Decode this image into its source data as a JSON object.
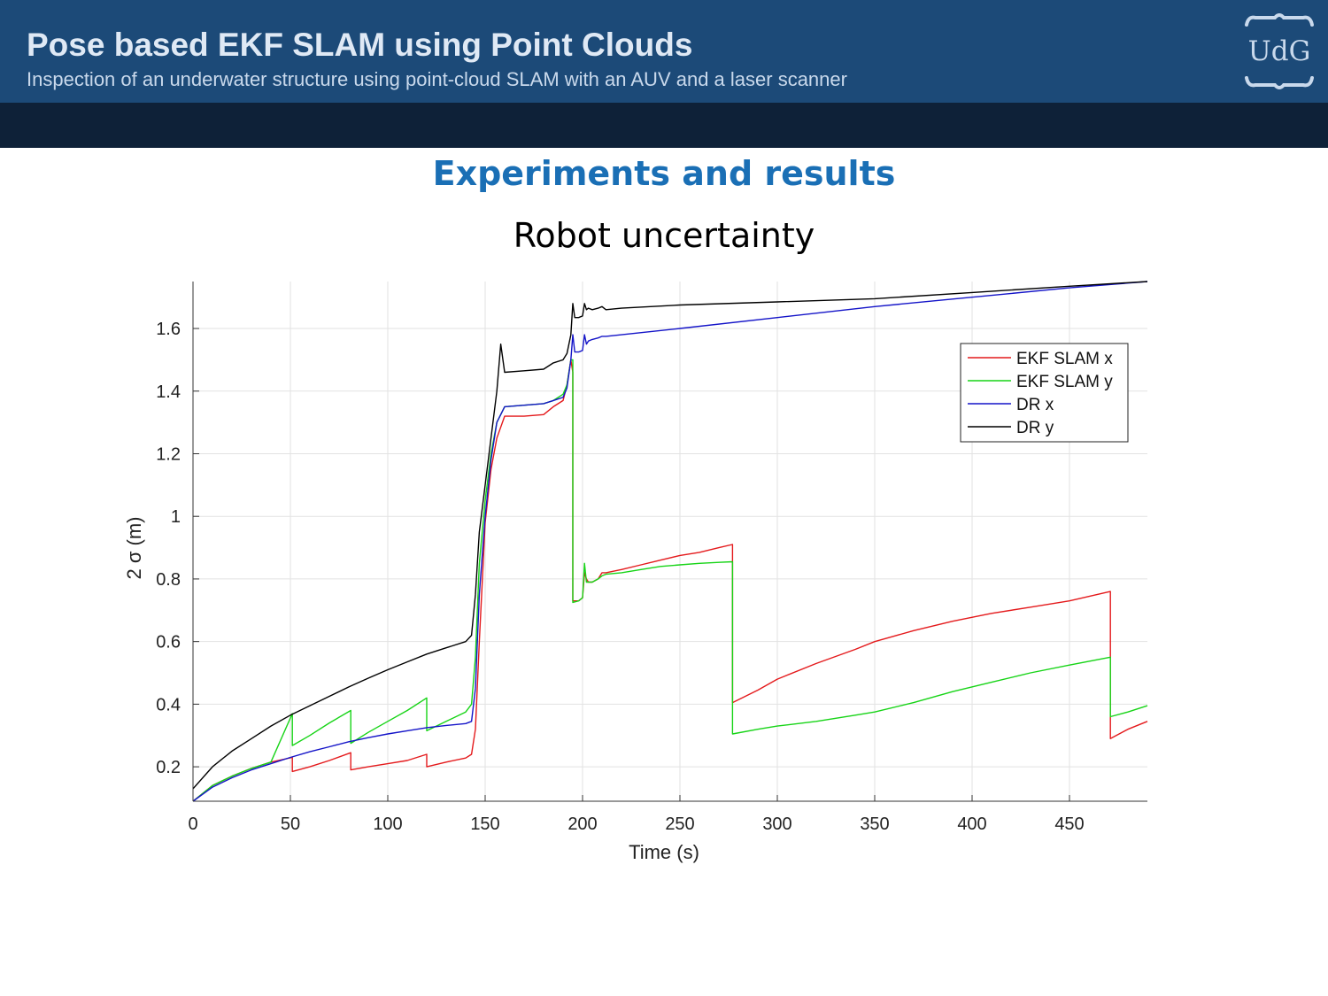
{
  "header": {
    "title": "Pose based EKF SLAM using Point Clouds",
    "subtitle": "Inspection of an underwater structure using point-cloud SLAM with an AUV and a laser scanner",
    "logo_text": "UdG",
    "colors": {
      "bar": "#1c4a78",
      "band": "#0e2138",
      "logo": "#c9d9ec"
    }
  },
  "section_title": "Experiments and results",
  "chart_data": {
    "type": "line",
    "title": "Robot uncertainty",
    "xlabel": "Time (s)",
    "ylabel": "2 σ (m)",
    "xlim": [
      0,
      490
    ],
    "ylim": [
      0.09,
      1.75
    ],
    "xticks": [
      0,
      50,
      100,
      150,
      200,
      250,
      300,
      350,
      400,
      450
    ],
    "yticks": [
      0.2,
      0.4,
      0.6,
      0.8,
      1,
      1.2,
      1.4,
      1.6
    ],
    "ytick_labels": [
      "0.2",
      "0.4",
      "0.6",
      "0.8",
      "1",
      "1.2",
      "1.4",
      "1.6"
    ],
    "grid": true,
    "legend_position": "top-right",
    "series": [
      {
        "name": "EKF SLAM x",
        "color": "#e41a1c",
        "x": [
          0,
          10,
          20,
          30,
          40,
          51,
          51,
          60,
          70,
          81,
          81,
          90,
          100,
          110,
          120,
          120,
          130,
          140,
          143,
          145,
          147,
          150,
          153,
          156,
          160,
          170,
          180,
          185,
          190,
          192,
          194,
          195,
          195,
          198,
          200,
          201,
          202,
          203,
          205,
          208,
          210,
          212,
          220,
          230,
          240,
          250,
          260,
          270,
          277,
          277,
          290,
          300,
          320,
          340,
          350,
          370,
          390,
          410,
          430,
          450,
          471,
          471,
          480,
          490
        ],
        "y": [
          0.09,
          0.14,
          0.17,
          0.195,
          0.215,
          0.23,
          0.185,
          0.2,
          0.22,
          0.245,
          0.19,
          0.2,
          0.21,
          0.22,
          0.24,
          0.2,
          0.215,
          0.228,
          0.24,
          0.32,
          0.6,
          0.98,
          1.15,
          1.25,
          1.32,
          1.32,
          1.325,
          1.35,
          1.37,
          1.42,
          1.5,
          1.46,
          0.73,
          0.73,
          0.74,
          0.82,
          0.8,
          0.79,
          0.79,
          0.8,
          0.82,
          0.82,
          0.83,
          0.845,
          0.86,
          0.875,
          0.885,
          0.9,
          0.91,
          0.405,
          0.445,
          0.48,
          0.53,
          0.575,
          0.6,
          0.635,
          0.665,
          0.69,
          0.71,
          0.73,
          0.76,
          0.29,
          0.32,
          0.345
        ]
      },
      {
        "name": "EKF SLAM y",
        "color": "#17d417",
        "x": [
          0,
          10,
          20,
          30,
          40,
          51,
          51,
          60,
          70,
          81,
          81,
          90,
          100,
          110,
          120,
          120,
          130,
          140,
          143,
          145,
          147,
          150,
          153,
          156,
          160,
          170,
          180,
          185,
          190,
          192,
          194,
          195,
          195,
          198,
          200,
          201,
          202,
          203,
          205,
          208,
          210,
          212,
          220,
          230,
          240,
          250,
          260,
          270,
          277,
          277,
          290,
          300,
          320,
          340,
          350,
          370,
          390,
          410,
          430,
          450,
          471,
          471,
          480,
          490
        ],
        "y": [
          0.09,
          0.14,
          0.17,
          0.195,
          0.215,
          0.37,
          0.268,
          0.3,
          0.34,
          0.38,
          0.275,
          0.31,
          0.345,
          0.38,
          0.42,
          0.315,
          0.345,
          0.375,
          0.4,
          0.55,
          0.85,
          1.05,
          1.2,
          1.3,
          1.35,
          1.355,
          1.36,
          1.37,
          1.39,
          1.42,
          1.5,
          1.5,
          0.725,
          0.73,
          0.74,
          0.85,
          0.79,
          0.79,
          0.79,
          0.8,
          0.81,
          0.815,
          0.82,
          0.83,
          0.84,
          0.845,
          0.85,
          0.853,
          0.855,
          0.305,
          0.32,
          0.33,
          0.345,
          0.365,
          0.375,
          0.405,
          0.44,
          0.47,
          0.5,
          0.525,
          0.55,
          0.36,
          0.375,
          0.395
        ]
      },
      {
        "name": "DR x",
        "color": "#1414c8",
        "x": [
          0,
          10,
          20,
          30,
          40,
          50,
          60,
          70,
          80,
          90,
          100,
          110,
          120,
          130,
          140,
          143,
          145,
          147,
          150,
          153,
          156,
          160,
          170,
          180,
          185,
          190,
          192,
          194,
          195,
          196,
          198,
          200,
          201,
          202,
          203,
          205,
          208,
          210,
          212,
          220,
          250,
          300,
          350,
          400,
          450,
          490
        ],
        "y": [
          0.09,
          0.135,
          0.165,
          0.19,
          0.21,
          0.23,
          0.248,
          0.264,
          0.28,
          0.293,
          0.305,
          0.315,
          0.325,
          0.332,
          0.338,
          0.345,
          0.45,
          0.75,
          1.0,
          1.18,
          1.3,
          1.35,
          1.355,
          1.36,
          1.37,
          1.38,
          1.41,
          1.5,
          1.58,
          1.525,
          1.525,
          1.53,
          1.58,
          1.55,
          1.56,
          1.565,
          1.57,
          1.575,
          1.575,
          1.58,
          1.6,
          1.635,
          1.67,
          1.7,
          1.73,
          1.75
        ]
      },
      {
        "name": "DR y",
        "color": "#000000",
        "x": [
          0,
          10,
          20,
          30,
          40,
          50,
          60,
          70,
          80,
          90,
          100,
          110,
          120,
          130,
          140,
          143,
          145,
          147,
          150,
          153,
          156,
          158,
          160,
          170,
          180,
          185,
          190,
          192,
          194,
          195,
          196,
          198,
          200,
          201,
          202,
          203,
          205,
          208,
          210,
          212,
          220,
          250,
          300,
          350,
          400,
          450,
          490
        ],
        "y": [
          0.13,
          0.2,
          0.25,
          0.29,
          0.33,
          0.365,
          0.395,
          0.425,
          0.455,
          0.483,
          0.51,
          0.535,
          0.56,
          0.58,
          0.6,
          0.62,
          0.75,
          0.95,
          1.1,
          1.25,
          1.4,
          1.55,
          1.46,
          1.465,
          1.47,
          1.49,
          1.5,
          1.52,
          1.58,
          1.68,
          1.635,
          1.635,
          1.64,
          1.68,
          1.66,
          1.665,
          1.66,
          1.665,
          1.67,
          1.66,
          1.665,
          1.675,
          1.685,
          1.695,
          1.715,
          1.735,
          1.75
        ]
      }
    ]
  }
}
